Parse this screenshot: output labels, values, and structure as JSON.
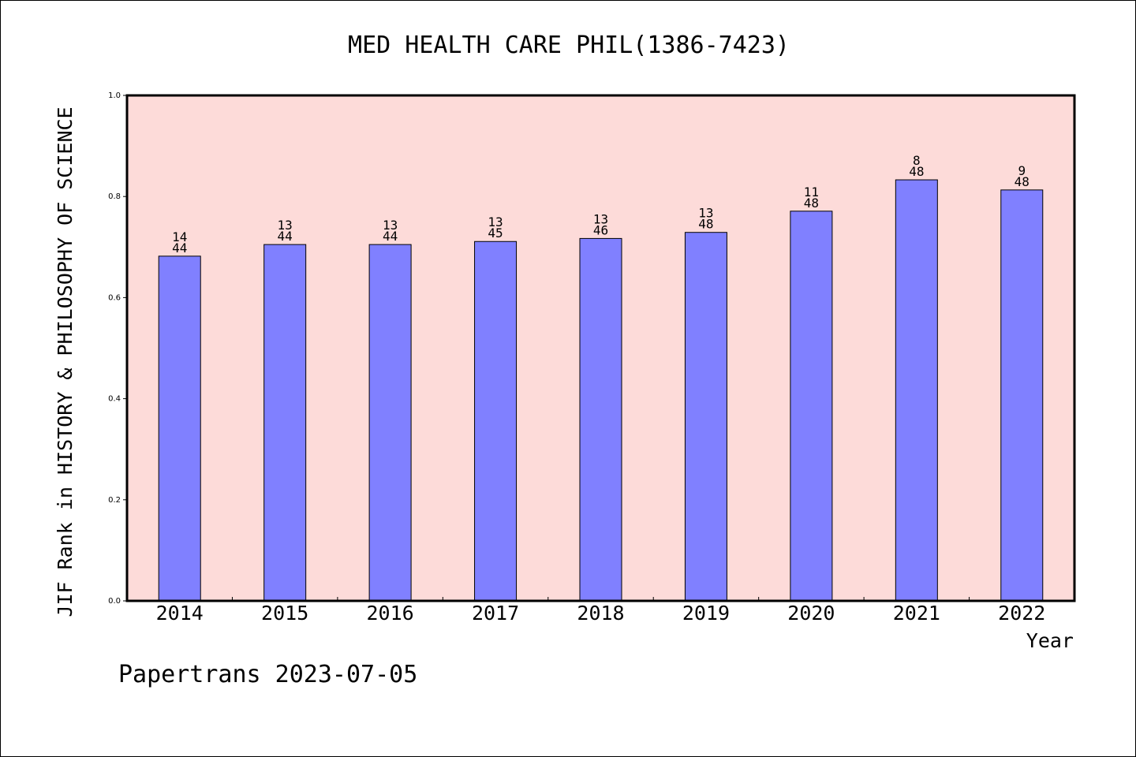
{
  "chart_data": {
    "type": "bar",
    "title": "MED HEALTH CARE PHIL(1386-7423)",
    "ylabel": "JIF Rank in HISTORY & PHILOSOPHY OF SCIENCE",
    "xlabel": "Year",
    "categories": [
      "2014",
      "2015",
      "2016",
      "2017",
      "2018",
      "2019",
      "2020",
      "2021",
      "2022"
    ],
    "values": [
      0.682,
      0.705,
      0.705,
      0.711,
      0.717,
      0.729,
      0.771,
      0.833,
      0.813
    ],
    "ranks": [
      "14",
      "13",
      "13",
      "13",
      "13",
      "13",
      "11",
      "8",
      "9"
    ],
    "totals": [
      "44",
      "44",
      "44",
      "45",
      "46",
      "48",
      "48",
      "48",
      "48"
    ],
    "ylim": [
      0,
      1.0
    ],
    "yticks": [
      "0.0",
      "0.2",
      "0.4",
      "0.6",
      "0.8",
      "1.0"
    ],
    "grid": false,
    "colors": {
      "bar": "#8080ff",
      "plot_background": "#fddbd9",
      "bar_edge": "#000000"
    }
  },
  "footer": "Papertrans 2023-07-05"
}
